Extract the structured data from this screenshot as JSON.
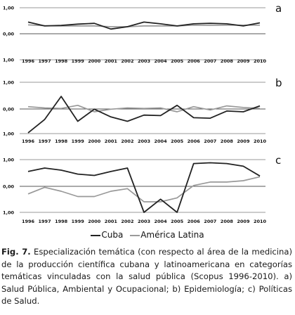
{
  "chart_data": [
    {
      "type": "line",
      "panel_label": "a",
      "x": [
        "1996",
        "1997",
        "1998",
        "1999",
        "2000",
        "2001",
        "2002",
        "2003",
        "2004",
        "2005",
        "2006",
        "2007",
        "2008",
        "2009",
        "2010"
      ],
      "ylim": [
        -1,
        1
      ],
      "yticks": [
        "1,00",
        "0,00",
        "1,00"
      ],
      "series": [
        {
          "name": "Cuba",
          "color": "#222222",
          "values": [
            0.45,
            0.3,
            0.32,
            0.37,
            0.4,
            0.18,
            0.27,
            0.45,
            0.38,
            0.3,
            0.38,
            0.4,
            0.38,
            0.3,
            0.42
          ]
        },
        {
          "name": "América Latina",
          "color": "#999999",
          "values": [
            0.34,
            0.31,
            0.3,
            0.3,
            0.3,
            0.27,
            0.27,
            0.3,
            0.3,
            0.3,
            0.33,
            0.32,
            0.33,
            0.33,
            0.33
          ]
        }
      ]
    },
    {
      "type": "line",
      "panel_label": "b",
      "x": [
        "1996",
        "1997",
        "1998",
        "1999",
        "2000",
        "2001",
        "2002",
        "2003",
        "2004",
        "2005",
        "2006",
        "2007",
        "2008",
        "2009",
        "2010"
      ],
      "ylim": [
        -1,
        1
      ],
      "yticks": [
        "1,00",
        "0,00",
        "1,00"
      ],
      "series": [
        {
          "name": "Cuba",
          "color": "#222222",
          "values": [
            -0.97,
            -0.45,
            0.45,
            -0.52,
            -0.05,
            -0.35,
            -0.52,
            -0.28,
            -0.3,
            0.1,
            -0.38,
            -0.4,
            -0.12,
            -0.15,
            0.08
          ]
        },
        {
          "name": "América Latina",
          "color": "#999999",
          "values": [
            0.05,
            0.0,
            -0.02,
            0.1,
            -0.15,
            -0.05,
            0.0,
            -0.02,
            0.0,
            -0.15,
            0.05,
            -0.08,
            0.08,
            0.02,
            -0.02
          ]
        }
      ]
    },
    {
      "type": "line",
      "panel_label": "c",
      "x": [
        "1996",
        "1997",
        "1998",
        "1999",
        "2000",
        "2001",
        "2002",
        "2003",
        "2004",
        "2005",
        "2006",
        "2007",
        "2008",
        "2009",
        "2010"
      ],
      "ylim": [
        -1,
        1
      ],
      "yticks": [
        "1,00",
        "0,00",
        "1,00"
      ],
      "series": [
        {
          "name": "Cuba",
          "color": "#222222",
          "values": [
            0.55,
            0.68,
            0.6,
            0.45,
            0.4,
            0.55,
            0.68,
            -1.0,
            -0.5,
            -1.0,
            0.85,
            0.88,
            0.85,
            0.75,
            0.38
          ]
        },
        {
          "name": "América Latina",
          "color": "#999999",
          "values": [
            -0.3,
            -0.05,
            -0.2,
            -0.4,
            -0.4,
            -0.2,
            -0.1,
            -0.6,
            -0.6,
            -0.45,
            0.02,
            0.15,
            0.15,
            0.2,
            0.35
          ]
        }
      ]
    }
  ],
  "legend": {
    "cuba": "Cuba",
    "latam": "América Latina"
  },
  "caption": {
    "label": "Fig. 7.",
    "text": "Especialización temática (con respecto al área de la medicina) de la producción científica cubana y latinoamericana en categorías temáticas vinculadas con la salud pública (Scopus 1996-2010). a) Salud Pública, Ambiental y Ocupacional; b) Epidemiología; c) Políticas de Salud."
  }
}
